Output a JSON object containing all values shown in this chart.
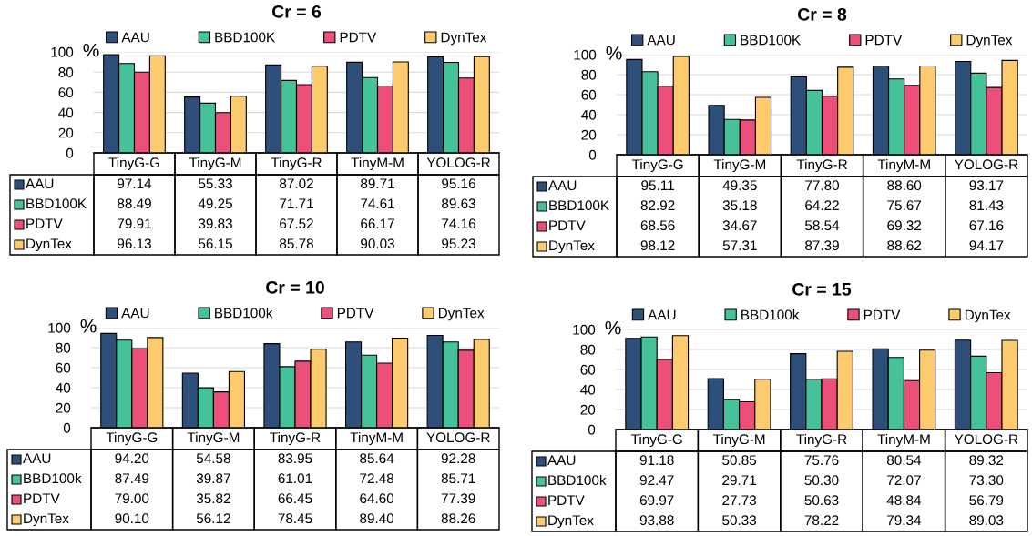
{
  "chart_data": [
    {
      "type": "bar",
      "title": "Cr = 6",
      "ylabel": "%",
      "categories": [
        "TinyG-G",
        "TinyG-M",
        "TinyG-R",
        "TinyM-M",
        "YOLOG-R"
      ],
      "ylim": [
        0,
        100
      ],
      "yticks": [
        0,
        20,
        40,
        60,
        80,
        100
      ],
      "grid": "y",
      "legend": "top",
      "series": [
        {
          "name": "AAU",
          "color": "#2e4f79",
          "values": [
            97.14,
            55.33,
            87.02,
            89.71,
            95.16
          ],
          "value_labels": [
            "97.14",
            "55.33",
            "87.02",
            "89.71",
            "95.16"
          ]
        },
        {
          "name": "BBD100K",
          "color": "#45c29a",
          "values": [
            88.49,
            49.25,
            71.71,
            74.61,
            89.63
          ],
          "value_labels": [
            "88.49",
            "49.25",
            "71.71",
            "74.61",
            "89.63"
          ]
        },
        {
          "name": "PDTV",
          "color": "#ec4f78",
          "values": [
            79.91,
            39.83,
            67.52,
            66.17,
            74.16
          ],
          "value_labels": [
            "79.91",
            "39.83",
            "67.52",
            "66.17",
            "74.16"
          ]
        },
        {
          "name": "DynTex",
          "color": "#fdcb6e",
          "values": [
            96.13,
            56.15,
            85.78,
            90.03,
            95.23
          ],
          "value_labels": [
            "96.13",
            "56.15",
            "85.78",
            "90.03",
            "95.23"
          ]
        }
      ]
    },
    {
      "type": "bar",
      "title": "Cr = 8",
      "ylabel": "%",
      "categories": [
        "TinyG-G",
        "TinyG-M",
        "TinyG-R",
        "TinyM-M",
        "YOLOG-R"
      ],
      "ylim": [
        0,
        100
      ],
      "yticks": [
        0,
        20,
        40,
        60,
        80,
        100
      ],
      "grid": "y",
      "legend": "top",
      "series": [
        {
          "name": "AAU",
          "color": "#2e4f79",
          "values": [
            95.11,
            49.35,
            77.8,
            88.6,
            93.17
          ],
          "value_labels": [
            "95.11",
            "49.35",
            "77.80",
            "88.60",
            "93.17"
          ]
        },
        {
          "name": "BBD100K",
          "color": "#45c29a",
          "values": [
            82.92,
            35.18,
            64.22,
            75.67,
            81.43
          ],
          "value_labels": [
            "82.92",
            "35.18",
            "64.22",
            "75.67",
            "81.43"
          ]
        },
        {
          "name": "PDTV",
          "color": "#ec4f78",
          "values": [
            68.56,
            34.67,
            58.54,
            69.32,
            67.16
          ],
          "value_labels": [
            "68.56",
            "34.67",
            "58.54",
            "69.32",
            "67.16"
          ]
        },
        {
          "name": "DynTex",
          "color": "#fdcb6e",
          "values": [
            98.12,
            57.31,
            87.39,
            88.62,
            94.17
          ],
          "value_labels": [
            "98.12",
            "57.31",
            "87.39",
            "88.62",
            "94.17"
          ]
        }
      ]
    },
    {
      "type": "bar",
      "title": "Cr = 10",
      "ylabel": "%",
      "categories": [
        "TinyG-G",
        "TinyG-M",
        "TinyG-R",
        "TinyM-M",
        "YOLOG-R"
      ],
      "ylim": [
        0,
        100
      ],
      "yticks": [
        0,
        20,
        40,
        60,
        80,
        100
      ],
      "grid": "y",
      "legend": "top",
      "series": [
        {
          "name": "AAU",
          "color": "#2e4f79",
          "values": [
            94.2,
            54.58,
            83.95,
            85.64,
            92.28
          ],
          "value_labels": [
            "94.20",
            "54.58",
            "83.95",
            "85.64",
            "92.28"
          ]
        },
        {
          "name": "BBD100k",
          "color": "#45c29a",
          "values": [
            87.49,
            39.87,
            61.01,
            72.48,
            85.71
          ],
          "value_labels": [
            "87.49",
            "39.87",
            "61.01",
            "72.48",
            "85.71"
          ]
        },
        {
          "name": "PDTV",
          "color": "#ec4f78",
          "values": [
            79.0,
            35.82,
            66.45,
            64.6,
            77.39
          ],
          "value_labels": [
            "79.00",
            "35.82",
            "66.45",
            "64.60",
            "77.39"
          ]
        },
        {
          "name": "DynTex",
          "color": "#fdcb6e",
          "values": [
            90.1,
            56.12,
            78.45,
            89.4,
            88.26
          ],
          "value_labels": [
            "90.10",
            "56.12",
            "78.45",
            "89.40",
            "88.26"
          ]
        }
      ]
    },
    {
      "type": "bar",
      "title": "Cr = 15",
      "ylabel": "%",
      "categories": [
        "TinyG-G",
        "TinyG-M",
        "TinyG-R",
        "TinyM-M",
        "YOLOG-R"
      ],
      "ylim": [
        0,
        100
      ],
      "yticks": [
        0,
        20,
        40,
        60,
        80,
        100
      ],
      "grid": "y",
      "legend": "top",
      "series": [
        {
          "name": "AAU",
          "color": "#2e4f79",
          "values": [
            91.18,
            50.85,
            75.76,
            80.54,
            89.32
          ],
          "value_labels": [
            "91.18",
            "50.85",
            "75.76",
            "80.54",
            "89.32"
          ]
        },
        {
          "name": "BBD100k",
          "color": "#45c29a",
          "values": [
            92.47,
            29.71,
            50.3,
            72.07,
            73.3
          ],
          "value_labels": [
            "92.47",
            "29.71",
            "50.30",
            "72.07",
            "73.30"
          ]
        },
        {
          "name": "PDTV",
          "color": "#ec4f78",
          "values": [
            69.97,
            27.73,
            50.63,
            48.84,
            56.79
          ],
          "value_labels": [
            "69.97",
            "27.73",
            "50.63",
            "48.84",
            "56.79"
          ]
        },
        {
          "name": "DynTex",
          "color": "#fdcb6e",
          "values": [
            93.88,
            50.33,
            78.22,
            79.34,
            89.03
          ],
          "value_labels": [
            "93.88",
            "50.33",
            "78.22",
            "79.34",
            "89.03"
          ]
        }
      ]
    }
  ]
}
